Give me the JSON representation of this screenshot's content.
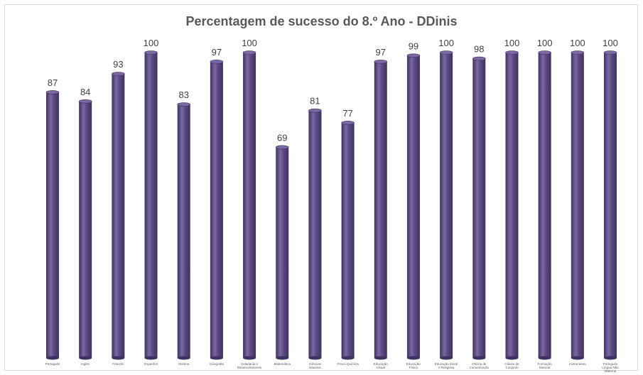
{
  "chart_data": {
    "type": "bar",
    "title": "Percentagem de sucesso do 8.º Ano - DDinis",
    "categories": [
      "Português",
      "Inglês",
      "Francês",
      "Espanhol",
      "História",
      "Geografia",
      "Cidadania e Desenvolvimento",
      "Matemática",
      "Ciências Naturais",
      "Físico-Química",
      "Educação Visual",
      "Educação Física",
      "Educação Moral e Religiosa",
      "Oficina de Comunicação",
      "Classe de Conjunto",
      "Formação Musical",
      "Instrumento",
      "Português Língua Não Materna"
    ],
    "series": [
      {
        "values": [
          87,
          84,
          93,
          100,
          83,
          97,
          100,
          69,
          81,
          77,
          97,
          99,
          100,
          98,
          100,
          100,
          100,
          100
        ]
      }
    ],
    "ylim": [
      0,
      100
    ],
    "grid": false,
    "legend": "none",
    "bar_color": "#5b4a82",
    "bar_highlight": "#7a69a3",
    "bar_shadow": "#3f3160",
    "title_color": "#595959",
    "label_color": "#404040"
  }
}
